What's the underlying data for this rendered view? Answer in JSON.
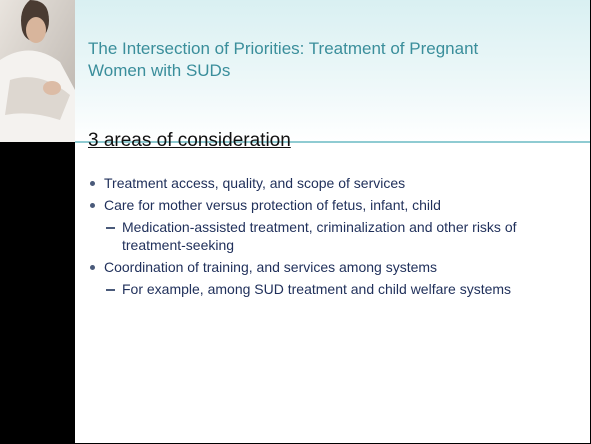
{
  "slide": {
    "title": "The Intersection of Priorities: Treatment of Pregnant Women with SUDs",
    "heading": "3 areas of consideration",
    "bullets": [
      {
        "text": "Treatment access, quality, and scope of services",
        "subs": []
      },
      {
        "text": "Care for mother versus protection of fetus, infant, child",
        "subs": [
          "Medication-assisted treatment, criminalization and other risks of treatment-seeking"
        ]
      },
      {
        "text": "Coordination of training, and services among systems",
        "subs": [
          "For example, among SUD treatment and child welfare systems"
        ]
      }
    ]
  }
}
